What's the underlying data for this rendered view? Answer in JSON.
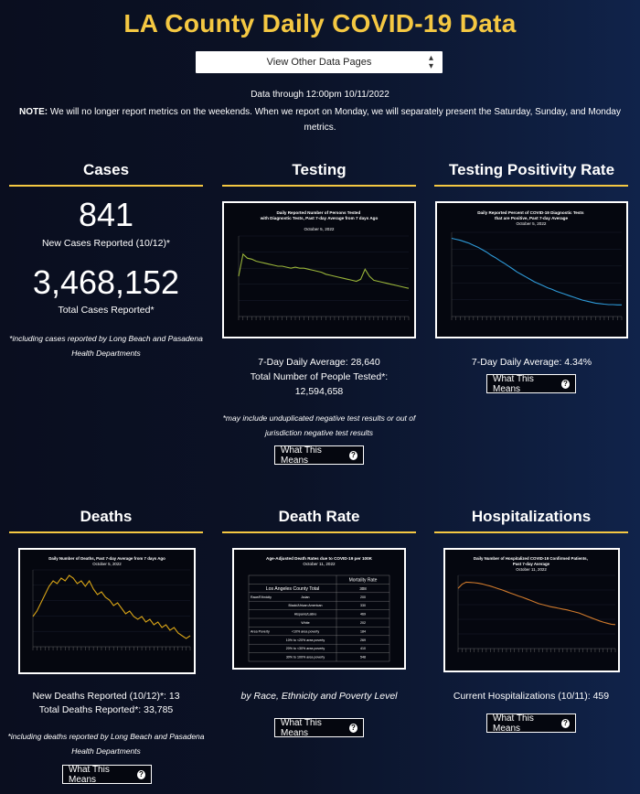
{
  "page": {
    "title": "LA County Daily COVID-19 Data",
    "select_label": "View Other Data Pages",
    "data_through": "Data through 12:00pm 10/11/2022",
    "note_label": "NOTE:",
    "note_text": " We will no longer report metrics on the weekends. When we report on Monday, we will separately present the Saturday, Sunday, and Monday metrics."
  },
  "what_this_means": "What This Means",
  "cases": {
    "title": "Cases",
    "new_count": "841",
    "new_label": "New Cases Reported (10/12)*",
    "total_count": "3,468,152",
    "total_label": "Total Cases Reported*",
    "footnote": "*including cases reported by Long Beach and Pasadena Health Departments"
  },
  "testing": {
    "title": "Testing",
    "chart_title": "Daily Reported Number of Persons Tested with Diagnostic Tests, Past 7-day Average from 7 days Ago",
    "chart_date": "October 5, 2022",
    "avg": "7-Day Daily Average: 28,640",
    "total_label": "Total Number of People Tested*:",
    "total_value": "12,594,658",
    "footnote": "*may include unduplicated negative test results or out of jurisdiction negative test results"
  },
  "positivity": {
    "title": "Testing Positivity Rate",
    "chart_title": "Daily Reported Percent of COVID-19 Diagnostic Tests that are Positive, Past 7-day Average",
    "chart_date": "October 5, 2022",
    "avg": "7-Day Daily Average: 4.34%"
  },
  "deaths": {
    "title": "Deaths",
    "chart_title": "Daily Number of Deaths, Past 7-day Average from 7 days Ago",
    "chart_date": "October 5, 2022",
    "new_label": "New Deaths Reported (10/12)*: 13",
    "total_label": "Total Deaths Reported*: 33,785",
    "footnote": "*including deaths reported by Long Beach and Pasadena Health Departments"
  },
  "death_rate": {
    "title": "Death Rate",
    "chart_title": "Age-Adjusted Death Rates due to COVID-19 per 100K",
    "chart_date": "October 11, 2022",
    "col_header": "Mortality Rate",
    "county_label": "Los Angeles County Total",
    "county_value": "308",
    "rows": [
      {
        "group": "Race/Ethnicity",
        "label": "Asian",
        "value": "200"
      },
      {
        "group": "",
        "label": "Black/African American",
        "value": "330"
      },
      {
        "group": "",
        "label": "Hispanic/Latino",
        "value": "469"
      },
      {
        "group": "",
        "label": "White",
        "value": "202"
      },
      {
        "group": "Area Poverty",
        "label": "<10% area poverty",
        "value": "184"
      },
      {
        "group": "",
        "label": "10% to <20% area poverty",
        "value": "269"
      },
      {
        "group": "",
        "label": "20% to <30% area poverty",
        "value": "410"
      },
      {
        "group": "",
        "label": "30% to 100% area poverty",
        "value": "548"
      }
    ],
    "caption": "by Race, Ethnicity and Poverty Level"
  },
  "hospitalizations": {
    "title": "Hospitalizations",
    "chart_title": "Daily Number of Hospitalized COVID-19 Confirmed Patients, Past 7-day Average",
    "chart_date": "October 11, 2022",
    "current_label": "Current Hospitalizations (10/11): 459"
  },
  "colors": {
    "accent": "#f5c842",
    "testing_line": "#9ab53a",
    "positivity_line": "#2e9ad8",
    "deaths_line": "#d8a417",
    "hosp_line": "#d07a2c"
  },
  "chart_data": [
    {
      "type": "line",
      "title": "Daily Reported Number of Persons Tested with Diagnostic Tests, Past 7-day Average from 7 days Ago",
      "series": [
        {
          "values": [
            40,
            62,
            58,
            57,
            55,
            54,
            53,
            52,
            51,
            50,
            50,
            49,
            48,
            49,
            48,
            48,
            47,
            46,
            45,
            44,
            42,
            41,
            40,
            39,
            38,
            37,
            36,
            35,
            37,
            47,
            40,
            36,
            35,
            34,
            33,
            32,
            31,
            30,
            29,
            28
          ]
        }
      ]
    },
    {
      "type": "line",
      "title": "Daily Reported Percent of COVID-19 Diagnostic Tests that are Positive, Past 7-day Average",
      "series": [
        {
          "values": [
            17.8,
            17.6,
            17.4,
            17.1,
            16.8,
            16.4,
            16.0,
            15.5,
            15.0,
            14.4,
            13.9,
            13.3,
            12.8,
            12.2,
            11.6,
            11.0,
            10.5,
            10.0,
            9.5,
            9.0,
            8.6,
            8.2,
            7.8,
            7.5,
            7.1,
            6.8,
            6.5,
            6.2,
            5.9,
            5.6,
            5.3,
            5.1,
            4.9,
            4.7,
            4.6,
            4.5,
            4.4,
            4.4,
            4.35,
            4.34
          ]
        }
      ]
    },
    {
      "type": "line",
      "title": "Daily Number of Deaths, Past 7-day Average from 7 days Ago",
      "series": [
        {
          "values": [
            11,
            13,
            16,
            19,
            22,
            24,
            23,
            25,
            24,
            26,
            25,
            23,
            24,
            22,
            24,
            21,
            19,
            20,
            18,
            17,
            15,
            16,
            14,
            12,
            13,
            11,
            10,
            11,
            9,
            10,
            8,
            9,
            7,
            8,
            6,
            7,
            5,
            4,
            3,
            4
          ]
        }
      ]
    },
    {
      "type": "line",
      "title": "Daily Number of Hospitalized COVID-19 Confirmed Patients, Past 7-day Average",
      "series": [
        {
          "values": [
            1150,
            1230,
            1270,
            1265,
            1260,
            1250,
            1235,
            1215,
            1195,
            1170,
            1145,
            1120,
            1090,
            1060,
            1035,
            1005,
            980,
            950,
            920,
            890,
            860,
            840,
            820,
            800,
            785,
            770,
            755,
            740,
            720,
            700,
            680,
            650,
            620,
            590,
            560,
            530,
            505,
            485,
            465,
            459
          ]
        }
      ]
    }
  ]
}
